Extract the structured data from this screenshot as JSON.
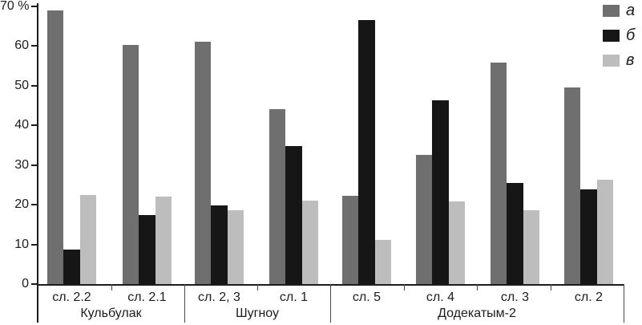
{
  "legend": {
    "position": "top-right",
    "items": [
      {
        "label": "а",
        "color": "#6f6f6f"
      },
      {
        "label": "б",
        "color": "#161616"
      },
      {
        "label": "в",
        "color": "#bdbdbd"
      }
    ]
  },
  "chart_data": {
    "type": "bar",
    "title": "",
    "xlabel": "",
    "ylabel": "%",
    "ylim": [
      0,
      70
    ],
    "yticks": [
      0,
      10,
      20,
      30,
      40,
      50,
      60,
      70
    ],
    "ytick_labels": [
      "0",
      "10",
      "20",
      "30",
      "40",
      "50",
      "60",
      "70 %"
    ],
    "grid": false,
    "legend_position": "top-right",
    "series_names": [
      "а",
      "б",
      "в"
    ],
    "series_colors": {
      "а": "#6f6f6f",
      "б": "#161616",
      "в": "#bdbdbd"
    },
    "sections": [
      {
        "label": "Кульбулак",
        "groups": [
          {
            "label": "сл. 2.2",
            "values": {
              "а": 69.0,
              "б": 8.6,
              "в": 22.4
            }
          },
          {
            "label": "сл. 2.1",
            "values": {
              "а": 60.3,
              "б": 17.4,
              "в": 22.0
            }
          }
        ]
      },
      {
        "label": "Шугноу",
        "groups": [
          {
            "label": "сл. 2, 3",
            "values": {
              "а": 61.0,
              "б": 19.9,
              "в": 18.6
            }
          },
          {
            "label": "сл. 1",
            "values": {
              "а": 44.2,
              "б": 34.8,
              "в": 21.0
            }
          }
        ]
      },
      {
        "label": "Додекатым-2",
        "groups": [
          {
            "label": "сл. 5",
            "values": {
              "а": 22.2,
              "б": 66.6,
              "в": 11.2
            }
          },
          {
            "label": "сл. 4",
            "values": {
              "а": 32.6,
              "б": 46.4,
              "в": 20.9
            }
          },
          {
            "label": "сл. 3",
            "values": {
              "а": 55.8,
              "б": 25.4,
              "в": 18.6
            }
          },
          {
            "label": "сл. 2",
            "values": {
              "а": 49.6,
              "б": 23.8,
              "в": 26.2
            }
          }
        ]
      }
    ]
  }
}
